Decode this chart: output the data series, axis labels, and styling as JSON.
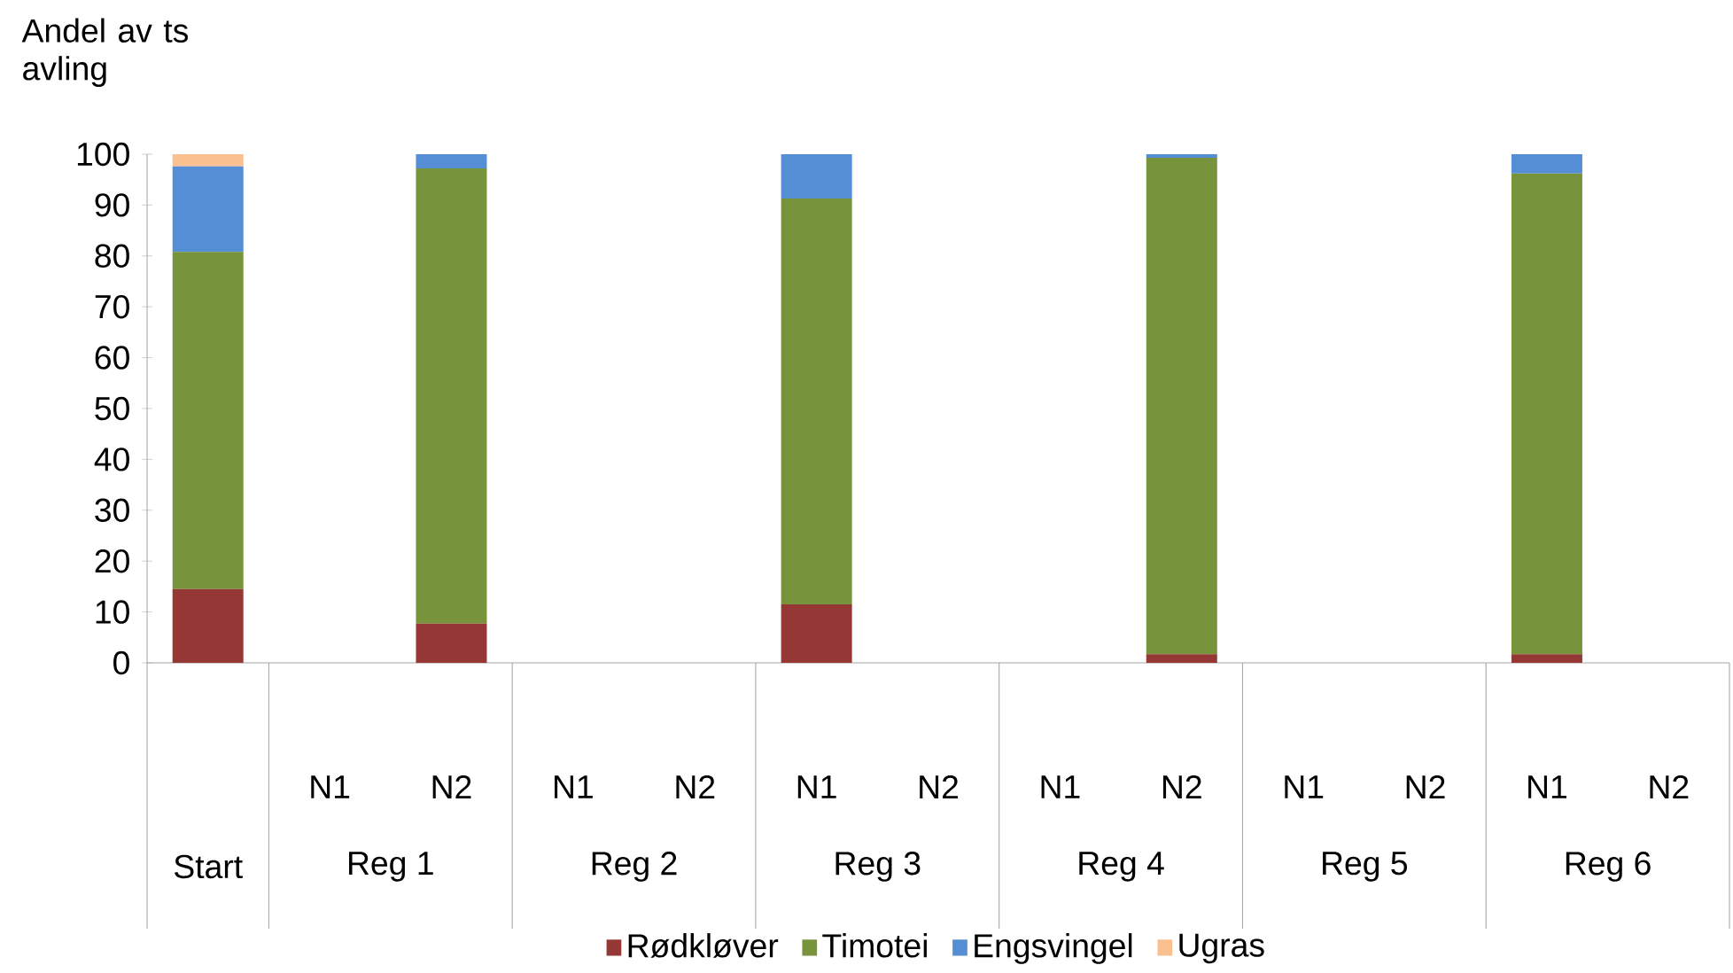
{
  "chart_data": {
    "type": "bar",
    "stacked": true,
    "ylabel": "Andel av ts avling",
    "categories": [
      null,
      "N1",
      "N2",
      "N1",
      "N2",
      "N1",
      "N2",
      "N1",
      "N2",
      "N1",
      "N2",
      "N1",
      "N2"
    ],
    "annotations": [
      "Start",
      "Reg 1",
      "Reg 2",
      "Reg 3",
      "Reg 4",
      "Reg 5",
      "Reg 6"
    ],
    "series": [
      {
        "name": "Rødkløver",
        "color": "#953735",
        "values": [
          14.5,
          null,
          7.7,
          null,
          null,
          11.5,
          null,
          null,
          1.7,
          null,
          null,
          1.7,
          null
        ]
      },
      {
        "name": "Timotei",
        "color": "#77933c",
        "values": [
          66.3,
          null,
          89.5,
          null,
          null,
          79.8,
          null,
          null,
          97.6,
          null,
          null,
          94.5,
          null
        ]
      },
      {
        "name": "Engsvingel",
        "color": "#558ed5",
        "values": [
          16.8,
          null,
          2.8,
          null,
          null,
          8.7,
          null,
          null,
          0.7,
          null,
          null,
          3.8,
          null
        ]
      },
      {
        "name": "Ugras",
        "color": "#fac090",
        "values": [
          2.4,
          null,
          null,
          null,
          null,
          null,
          null,
          null,
          null,
          null,
          null,
          null,
          null
        ]
      }
    ],
    "ylim": [
      0,
      100
    ],
    "yticks": [
      0,
      10,
      20,
      30,
      40,
      50,
      60,
      70,
      80,
      90,
      100
    ],
    "grid": false,
    "legend": "bottom"
  }
}
